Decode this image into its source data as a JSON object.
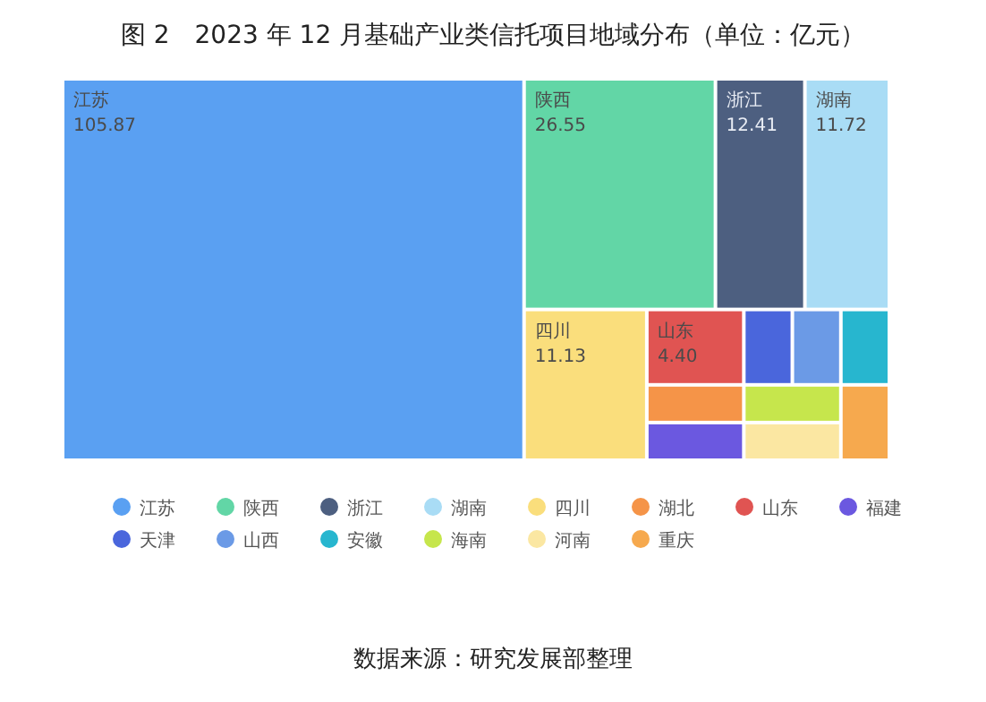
{
  "chart_data": {
    "type": "other",
    "title": "图 2　2023 年 12 月基础产业类信托项目地域分布（单位：亿元）",
    "categories": [
      "江苏",
      "陕西",
      "浙江",
      "湖南",
      "四川",
      "湖北",
      "山东",
      "福建",
      "天津",
      "山西",
      "安徽",
      "海南",
      "河南",
      "重庆"
    ],
    "values": [
      105.87,
      26.55,
      12.41,
      11.72,
      11.13,
      null,
      4.4,
      null,
      null,
      null,
      null,
      null,
      null,
      null
    ],
    "value_labels": [
      "105.87",
      "26.55",
      "12.41",
      "11.72",
      "11.13",
      null,
      "4.40",
      null,
      null,
      null,
      null,
      null,
      null,
      null
    ],
    "colors": [
      "#5aa0f2",
      "#62d6a6",
      "#4d5f80",
      "#a9dcf5",
      "#fade7c",
      "#f59448",
      "#e05452",
      "#6b58e0",
      "#4a66dc",
      "#6b9ae6",
      "#27b6cf",
      "#c6e64c",
      "#fbe7a2",
      "#f6a94e"
    ],
    "annotations": [
      "数据来源：研究发展部整理"
    ]
  }
}
